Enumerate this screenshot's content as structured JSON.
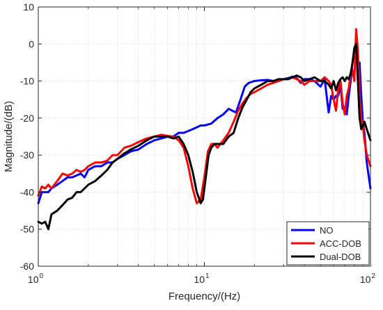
{
  "chart_data": {
    "type": "line",
    "xlabel": "Frequency/(Hz)",
    "ylabel": "Magnitude/(dB)",
    "x_scale": "log",
    "xlim": [
      1,
      100
    ],
    "ylim": [
      -60,
      10
    ],
    "x_ticks": [
      1,
      10,
      100
    ],
    "x_tick_labels": [
      {
        "base": "10",
        "exp": "0"
      },
      {
        "base": "10",
        "exp": "1"
      },
      {
        "base": "10",
        "exp": "2"
      }
    ],
    "y_ticks": [
      -60,
      -50,
      -40,
      -30,
      -20,
      -10,
      0,
      10
    ],
    "y_tick_labels": [
      "-60",
      "-50",
      "-40",
      "-30",
      "-20",
      "-10",
      "0",
      "10"
    ],
    "grid": true,
    "legend_position": "bottom-right",
    "series": [
      {
        "name": "NO",
        "color": "#0000ff",
        "x": [
          1.0,
          1.05,
          1.1,
          1.15,
          1.2,
          1.3,
          1.4,
          1.5,
          1.6,
          1.7,
          1.8,
          1.9,
          2.0,
          2.2,
          2.4,
          2.6,
          2.8,
          3.0,
          3.3,
          3.6,
          4.0,
          4.5,
          5.0,
          5.5,
          6.0,
          6.5,
          7.0,
          7.5,
          8.0,
          8.5,
          9.0,
          9.5,
          10.0,
          11.0,
          12.0,
          13.0,
          14.0,
          14.7,
          15.5,
          16.5,
          17.5,
          18.5,
          20.0,
          22.0,
          24.0,
          26.0,
          28.0,
          30.0,
          32.0,
          34.0,
          36.0,
          38.0,
          40.0,
          43.0,
          46.0,
          50.0,
          53.0,
          56.0,
          58.0,
          60.0,
          62.0,
          64.0,
          66.0,
          68.0,
          70.0,
          72.0,
          74.0,
          76.0,
          78.0,
          80.0,
          82.0,
          84.0,
          86.0,
          88.0,
          90.0,
          92.0,
          95.0,
          100.0
        ],
        "y": [
          -43,
          -40,
          -40,
          -40,
          -39,
          -38,
          -37,
          -36,
          -36,
          -35.5,
          -35,
          -36,
          -34,
          -33,
          -33,
          -32,
          -32,
          -31,
          -30,
          -29,
          -28.5,
          -27,
          -26,
          -25.5,
          -25,
          -25,
          -24,
          -24,
          -23.5,
          -23,
          -22.5,
          -22,
          -22,
          -21.5,
          -20,
          -19,
          -17.5,
          -18,
          -18.5,
          -15,
          -11.5,
          -10.5,
          -10,
          -9.8,
          -9.7,
          -10,
          -10,
          -9.5,
          -9.2,
          -8.8,
          -9.2,
          -10.5,
          -9.5,
          -9.5,
          -10,
          -11.5,
          -9.5,
          -18.5,
          -14,
          -15,
          -14,
          -14,
          -11,
          -17.5,
          -17,
          -19,
          -14,
          -10,
          -5,
          -2,
          -1,
          -7,
          -5,
          -14,
          -21,
          -24,
          -32,
          -39
        ]
      },
      {
        "name": "ACC-DOB",
        "color": "#ff0000",
        "x": [
          1.0,
          1.05,
          1.1,
          1.15,
          1.2,
          1.3,
          1.4,
          1.5,
          1.6,
          1.7,
          1.8,
          1.9,
          2.0,
          2.2,
          2.4,
          2.6,
          2.8,
          3.0,
          3.3,
          3.6,
          4.0,
          4.5,
          5.0,
          5.5,
          6.0,
          6.5,
          7.0,
          7.5,
          8.0,
          8.5,
          9.0,
          9.5,
          10.0,
          10.5,
          11.0,
          11.5,
          12.0,
          13.0,
          14.0,
          15.0,
          16.0,
          17.0,
          18.0,
          19.0,
          20.0,
          22.0,
          24.0,
          26.0,
          28.0,
          30.0,
          32.0,
          34.0,
          36.0,
          38.0,
          40.0,
          43.0,
          46.0,
          50.0,
          53.0,
          56.0,
          58.0,
          60.0,
          62.0,
          64.0,
          66.0,
          68.0,
          70.0,
          72.0,
          74.0,
          76.0,
          78.0,
          80.0,
          82.0,
          84.0,
          86.0,
          88.0,
          90.0,
          92.0,
          95.0,
          100.0
        ],
        "y": [
          -41,
          -38.5,
          -39,
          -38,
          -39,
          -37,
          -35,
          -35.5,
          -35,
          -34,
          -34.5,
          -34,
          -33,
          -32,
          -32,
          -31.5,
          -30,
          -30,
          -28,
          -27.5,
          -26.5,
          -25.5,
          -25,
          -24.5,
          -24.8,
          -25,
          -26,
          -28,
          -33,
          -39,
          -43,
          -42,
          -36,
          -29,
          -27,
          -27,
          -28,
          -26,
          -24,
          -21,
          -18,
          -16,
          -14.5,
          -13.5,
          -13,
          -12,
          -11,
          -10.5,
          -10,
          -9.5,
          -9.5,
          -9,
          -9.5,
          -10,
          -11,
          -10,
          -10,
          -10,
          -9,
          -10,
          -11,
          -15,
          -18,
          -12,
          -10,
          -16,
          -19,
          -14,
          -12,
          -8,
          -7,
          -10,
          4,
          -2,
          -14,
          -20,
          -22,
          -26,
          -30,
          -33
        ]
      },
      {
        "name": "Dual-DOB",
        "color": "#000000",
        "x": [
          1.0,
          1.05,
          1.1,
          1.15,
          1.2,
          1.3,
          1.4,
          1.5,
          1.6,
          1.7,
          1.8,
          1.9,
          2.0,
          2.2,
          2.4,
          2.6,
          2.8,
          3.0,
          3.3,
          3.6,
          4.0,
          4.5,
          5.0,
          5.5,
          6.0,
          6.5,
          7.0,
          7.5,
          8.0,
          8.5,
          9.0,
          9.5,
          9.8,
          10.2,
          10.6,
          11.0,
          11.5,
          12.0,
          13.0,
          14.0,
          15.0,
          16.0,
          17.0,
          18.0,
          19.0,
          20.0,
          22.0,
          24.0,
          26.0,
          28.0,
          30.0,
          32.0,
          34.0,
          36.0,
          38.0,
          40.0,
          43.0,
          46.0,
          50.0,
          53.0,
          56.0,
          58.0,
          60.0,
          62.0,
          64.0,
          66.0,
          68.0,
          70.0,
          72.0,
          74.0,
          76.0,
          78.0,
          80.0,
          82.0,
          84.0,
          86.0,
          88.0,
          90.0,
          92.0,
          95.0,
          100.0
        ],
        "y": [
          -48,
          -48.5,
          -48,
          -50,
          -46,
          -45,
          -43.5,
          -42,
          -41.5,
          -40,
          -40,
          -39,
          -38,
          -37,
          -35.5,
          -34,
          -32,
          -31,
          -29.5,
          -28.5,
          -27.5,
          -26,
          -25,
          -25,
          -25,
          -25.5,
          -25,
          -27,
          -30,
          -34.5,
          -40,
          -43,
          -42,
          -36,
          -30,
          -28,
          -27,
          -27,
          -27,
          -25,
          -24,
          -20,
          -17,
          -15,
          -13,
          -12,
          -11,
          -10,
          -10,
          -9.5,
          -9.5,
          -9.5,
          -9,
          -8.5,
          -9,
          -10,
          -9.5,
          -9,
          -10,
          -10,
          -11,
          -12,
          -10,
          -12.5,
          -10.5,
          -9.5,
          -9,
          -10,
          -9,
          -9.5,
          -8,
          -5,
          -1,
          0,
          -10,
          -20,
          -23,
          -22,
          -21,
          -23,
          -26
        ]
      }
    ]
  }
}
